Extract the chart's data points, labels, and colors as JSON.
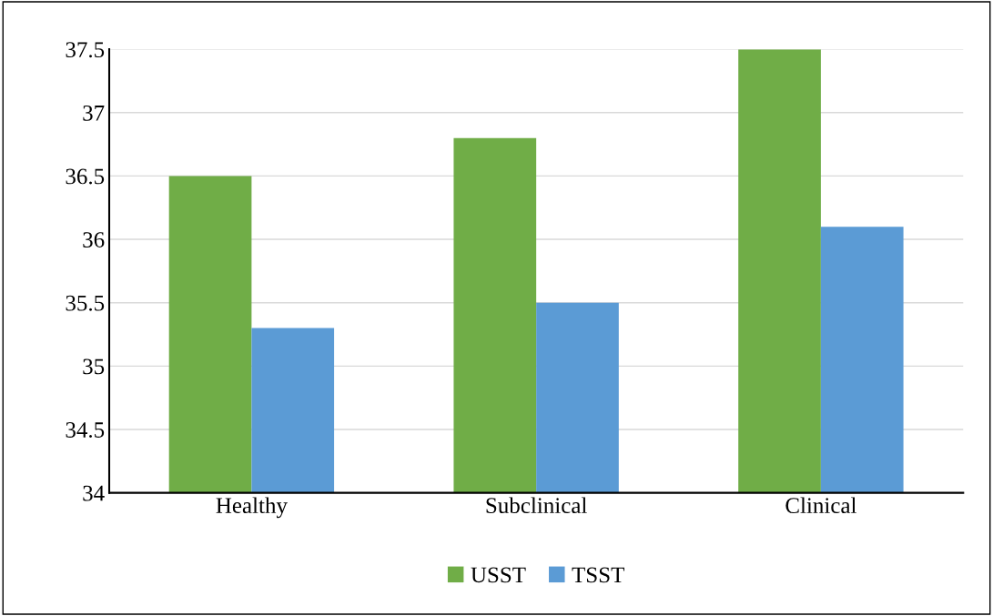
{
  "chart_data": {
    "type": "bar",
    "categories": [
      "Healthy",
      "Subclinical",
      "Clinical"
    ],
    "series": [
      {
        "name": "USST",
        "color": "#70ad47",
        "values": [
          36.5,
          36.8,
          37.5
        ]
      },
      {
        "name": "TSST",
        "color": "#5b9bd5",
        "values": [
          35.3,
          35.5,
          36.1
        ]
      }
    ],
    "ylim": [
      34,
      37.5
    ],
    "yticks": [
      34,
      34.5,
      35,
      35.5,
      36,
      36.5,
      37,
      37.5
    ],
    "grid": "y",
    "legend": "bottom"
  }
}
